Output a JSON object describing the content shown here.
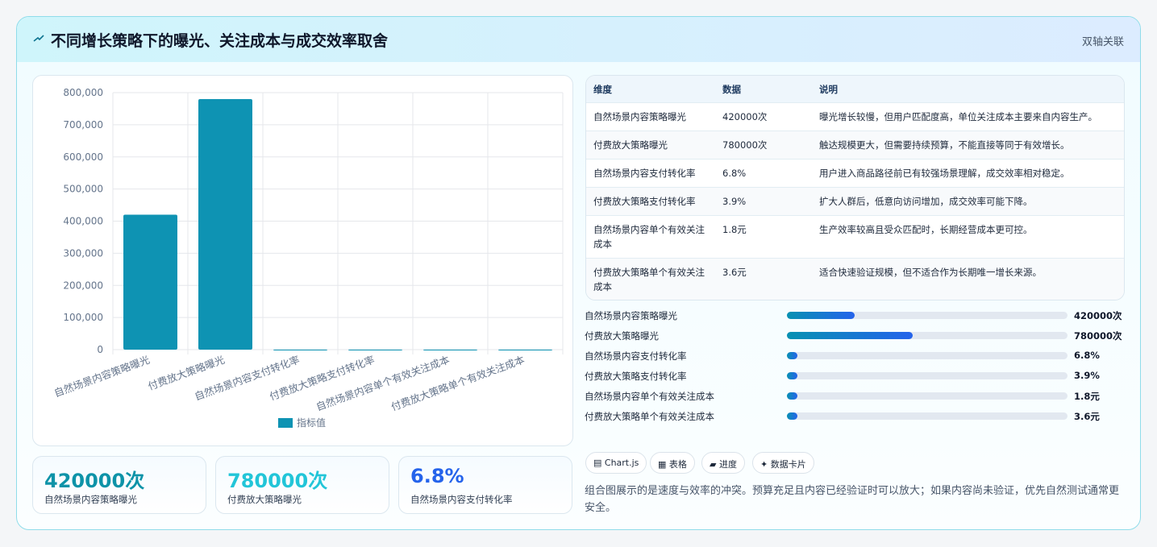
{
  "header": {
    "title": "不同增长策略下的曝光、关注成本与成交效率取舍",
    "badge": "双轴关联"
  },
  "chart_data": {
    "type": "bar",
    "categories": [
      "自然场景内容策略曝光",
      "付费放大策略曝光",
      "自然场景内容支付转化率",
      "付费放大策略支付转化率",
      "自然场景内容单个有效关注成本",
      "付费放大策略单个有效关注成本"
    ],
    "series": [
      {
        "name": "指标值",
        "color": "#0e93b3",
        "values": [
          420000,
          780000,
          6.8,
          3.9,
          1.8,
          3.6
        ]
      }
    ],
    "ylim": [
      0,
      800000
    ],
    "yticks": [
      0,
      {
        "value": 100000,
        "label": "100,000"
      },
      {
        "value": 200000,
        "label": "200,000"
      },
      {
        "value": 300000,
        "label": "300,000"
      },
      {
        "value": 400000,
        "label": "400,000"
      },
      {
        "value": 500000,
        "label": "500,000"
      },
      {
        "value": 600000,
        "label": "600,000"
      },
      {
        "value": 700000,
        "label": "700,000"
      },
      {
        "value": 800000,
        "label": "800,000"
      }
    ],
    "grid": true,
    "legend": "bottom"
  },
  "table": {
    "columns": [
      "维度",
      "数据",
      "说明"
    ],
    "rows": [
      [
        "自然场景内容策略曝光",
        "420000次",
        "曝光增长较慢，但用户匹配度高，单位关注成本主要来自内容生产。"
      ],
      [
        "付费放大策略曝光",
        "780000次",
        "触达规模更大，但需要持续预算，不能直接等同于有效增长。"
      ],
      [
        "自然场景内容支付转化率",
        "6.8%",
        "用户进入商品路径前已有较强场景理解，成交效率相对稳定。"
      ],
      [
        "付费放大策略支付转化率",
        "3.9%",
        "扩大人群后，低意向访问增加，成交效率可能下降。"
      ],
      [
        "自然场景内容单个有效关注成本",
        "1.8元",
        "生产效率较高且受众匹配时，长期经营成本更可控。"
      ],
      [
        "付费放大策略单个有效关注成本",
        "3.6元",
        "适合快速验证规模，但不适合作为长期唯一增长来源。"
      ]
    ]
  },
  "progress": {
    "xlim": [
      0,
      1740000
    ],
    "items": [
      {
        "label": "自然场景内容策略曝光",
        "value": 420000,
        "value_label": "420000次"
      },
      {
        "label": "付费放大策略曝光",
        "value": 780000,
        "value_label": "780000次"
      },
      {
        "label": "自然场景内容支付转化率",
        "value": 6.8,
        "value_label": "6.8%"
      },
      {
        "label": "付费放大策略支付转化率",
        "value": 3.9,
        "value_label": "3.9%"
      },
      {
        "label": "自然场景内容单个有效关注成本",
        "value": 1.8,
        "value_label": "1.8元"
      },
      {
        "label": "付费放大策略单个有效关注成本",
        "value": 3.6,
        "value_label": "3.6元"
      }
    ]
  },
  "cards": [
    {
      "value": 420000,
      "value_label": "420000次",
      "label": "自然场景内容策略曝光"
    },
    {
      "value": 780000,
      "value_label": "780000次",
      "label": "付费放大策略曝光"
    },
    {
      "value": 6.8,
      "value_label": "6.8%",
      "label": "自然场景内容支付转化率"
    }
  ],
  "tags": [
    "▤ Chart.js",
    "▦ 表格",
    "▰ 进度",
    "✦ 数据卡片"
  ],
  "note": "组合图展示的是速度与效率的冲突。预算充足且内容已经验证时可以放大；如果内容尚未验证，优先自然测试通常更安全。"
}
